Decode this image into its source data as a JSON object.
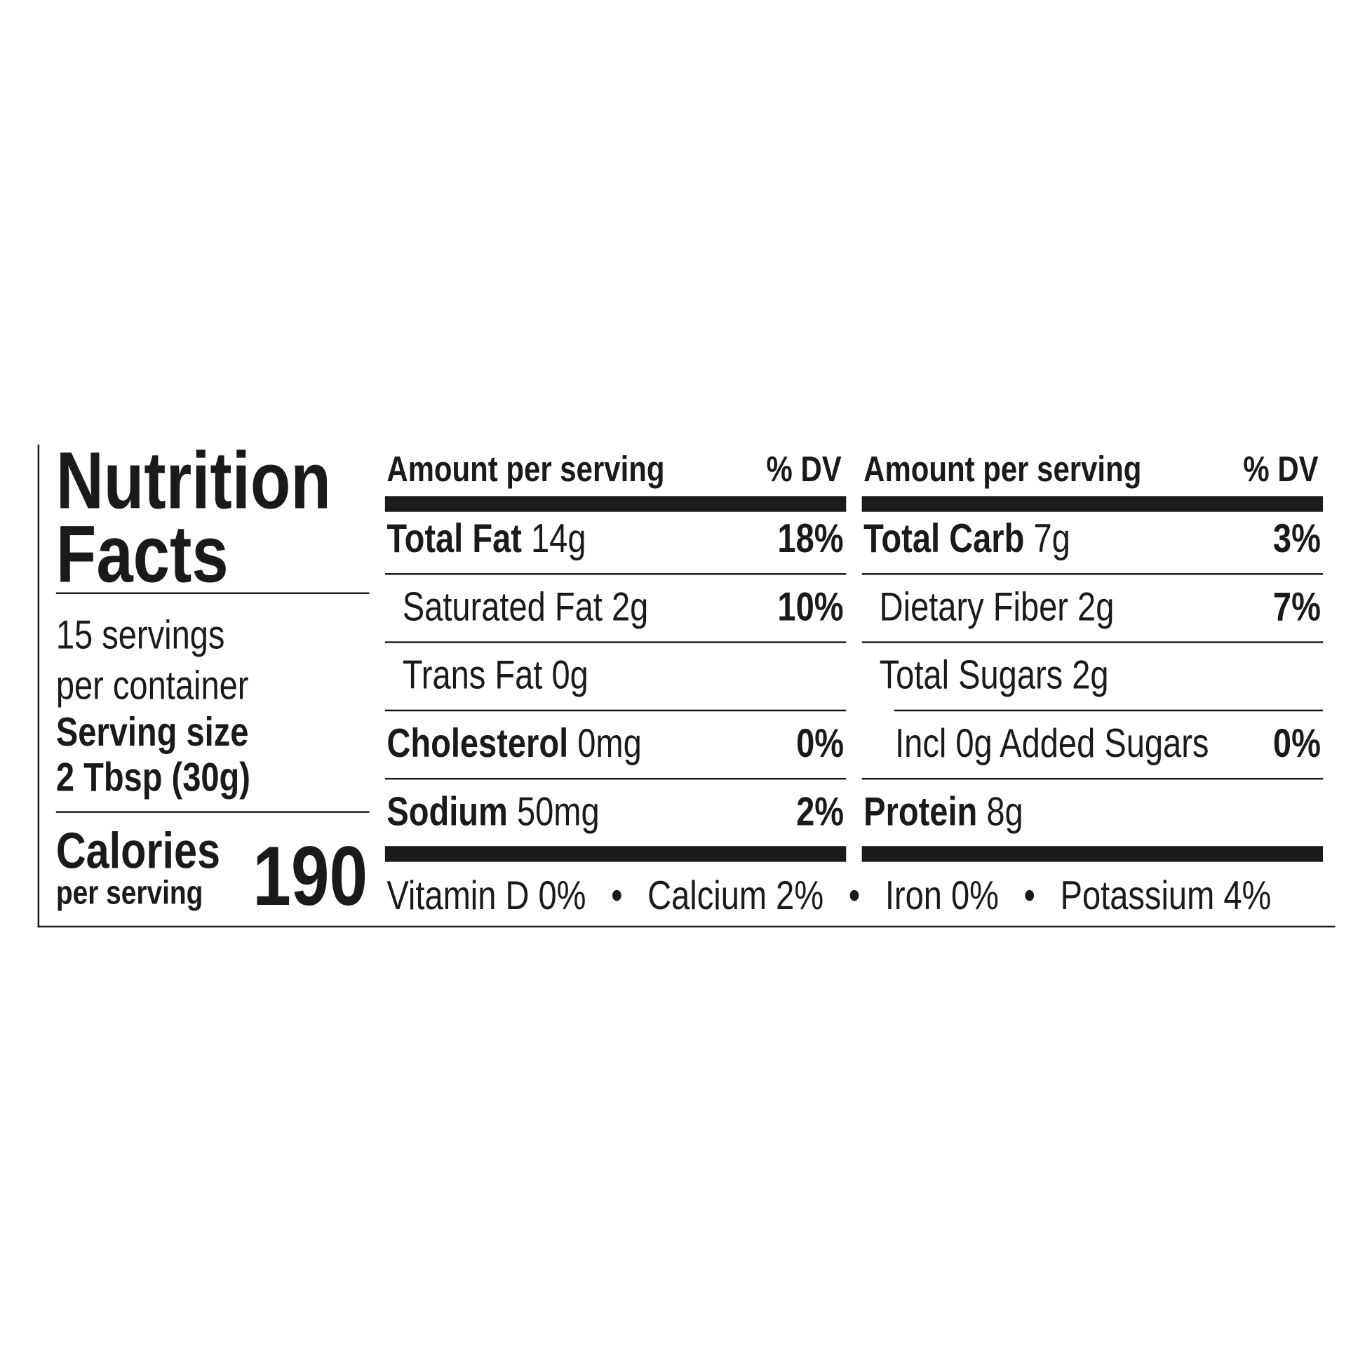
{
  "title_line1": "Nutrition",
  "title_line2": "Facts",
  "servings_line1": "15 servings",
  "servings_line2": "per container",
  "serving_size_label": "Serving size",
  "serving_size_value": "2 Tbsp (30g)",
  "calories_label": "Calories",
  "calories_sub": "per serving",
  "calories_value": "190",
  "columns": [
    {
      "header_amount": "Amount per serving",
      "header_dv": "% DV",
      "rows": [
        {
          "name": "Total Fat",
          "amount": "14g",
          "dv": "18%",
          "bold": true,
          "indent": 0
        },
        {
          "name": "Saturated Fat",
          "amount": "2g",
          "dv": "10%",
          "bold": false,
          "indent": 1
        },
        {
          "name": "Trans Fat",
          "amount": "0g",
          "dv": "",
          "bold": false,
          "indent": 1
        },
        {
          "name": "Cholesterol",
          "amount": "0mg",
          "dv": "0%",
          "bold": true,
          "indent": 0
        },
        {
          "name": "Sodium",
          "amount": "50mg",
          "dv": "2%",
          "bold": true,
          "indent": 0
        }
      ]
    },
    {
      "header_amount": "Amount per serving",
      "header_dv": "% DV",
      "rows": [
        {
          "name": "Total Carb",
          "amount": "7g",
          "dv": "3%",
          "bold": true,
          "indent": 0
        },
        {
          "name": "Dietary Fiber",
          "amount": "2g",
          "dv": "7%",
          "bold": false,
          "indent": 1
        },
        {
          "name": "Total Sugars",
          "amount": "2g",
          "dv": "",
          "bold": false,
          "indent": 1
        },
        {
          "name": "Incl 0g Added Sugars",
          "amount": "",
          "dv": "0%",
          "bold": false,
          "indent": 2
        },
        {
          "name": "Protein",
          "amount": "8g",
          "dv": "",
          "bold": true,
          "indent": 0
        }
      ]
    }
  ],
  "vitamins": [
    {
      "text": "Vitamin D 0%"
    },
    {
      "text": "Calcium 2%"
    },
    {
      "text": "Iron 0%"
    },
    {
      "text": "Potassium 4%"
    }
  ],
  "bullet": "•"
}
